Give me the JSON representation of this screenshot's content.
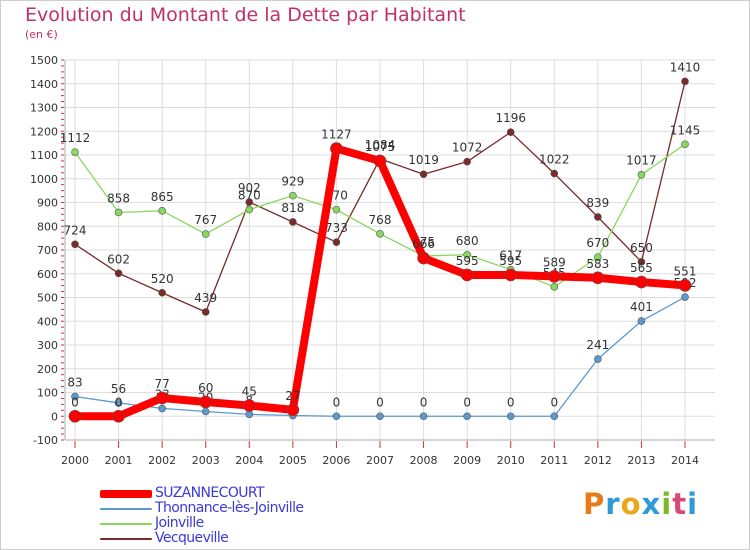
{
  "title": "Evolution du Montant de la Dette par Habitant",
  "unit": "(en €)",
  "logo": "Proxiti",
  "logo_colors": [
    "#e87b18",
    "#2f9ad8",
    "#e8a818",
    "#2f9ad8",
    "#7ab828",
    "#d84878",
    "#2f9ad8"
  ],
  "chart_data": {
    "type": "line",
    "x": [
      "2000",
      "2001",
      "2002",
      "2003",
      "2004",
      "2005",
      "2006",
      "2007",
      "2008",
      "2009",
      "2010",
      "2011",
      "2012",
      "2013",
      "2014"
    ],
    "ylim": [
      -100,
      1500
    ],
    "yticks": [
      -100,
      0,
      100,
      200,
      300,
      400,
      500,
      600,
      700,
      800,
      900,
      1000,
      1100,
      1200,
      1300,
      1400,
      1500
    ],
    "grid": true,
    "legend_position": "bottom-left",
    "series": [
      {
        "name": "Vecqueville",
        "color": "#7a2a2a",
        "values": [
          724,
          602,
          520,
          439,
          902,
          818,
          733,
          1084,
          1019,
          1072,
          1196,
          1022,
          839,
          650,
          1410
        ]
      },
      {
        "name": "Joinville",
        "color": "#88d860",
        "values": [
          1112,
          858,
          865,
          767,
          870,
          929,
          870,
          768,
          675,
          680,
          617,
          545,
          670,
          1017,
          1145
        ]
      },
      {
        "name": "Thonnance-lès-Joinville",
        "color": "#5a9ad0",
        "values": [
          83,
          56,
          33,
          20,
          8,
          3,
          0,
          0,
          0,
          0,
          0,
          0,
          241,
          401,
          502
        ]
      },
      {
        "name": "SUZANNECOURT",
        "color": "#ff0000",
        "values": [
          0,
          0,
          77,
          60,
          45,
          27,
          1127,
          1075,
          666,
          595,
          595,
          589,
          583,
          565,
          551
        ]
      }
    ]
  },
  "legend": [
    {
      "name": "SUZANNECOURT",
      "color": "#ff0000"
    },
    {
      "name": "Thonnance-lès-Joinville",
      "color": "#5a9ad0"
    },
    {
      "name": "Joinville",
      "color": "#88d860"
    },
    {
      "name": "Vecqueville",
      "color": "#7a2a2a"
    }
  ]
}
